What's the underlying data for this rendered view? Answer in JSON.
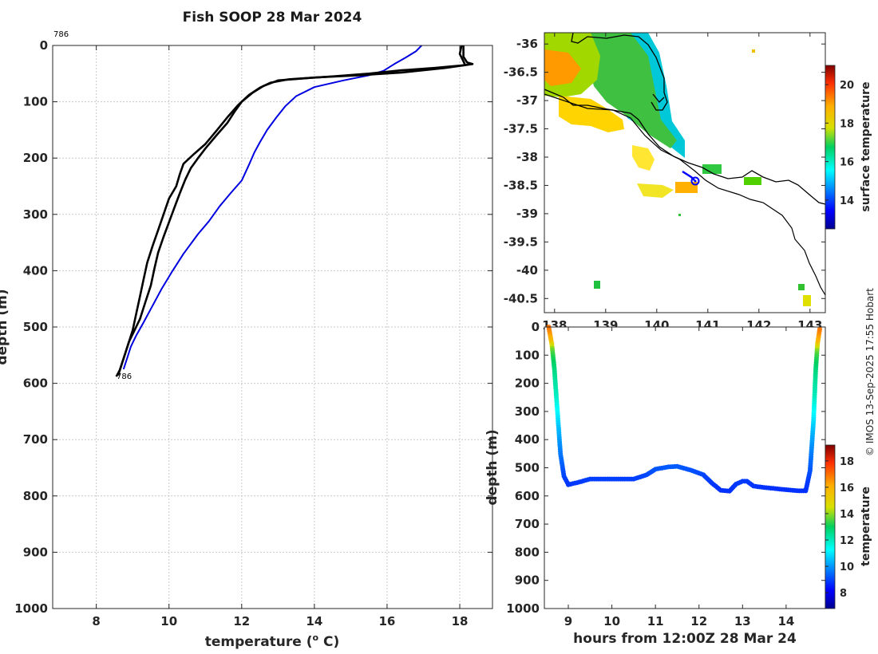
{
  "figure": {
    "title": "Fish SOOP 28 Mar 2024",
    "credit": "© IMOS 13-Sep-2025 17:55 Hobart",
    "profile_id_top": "786",
    "profile_id_bottom": "786"
  },
  "colors": {
    "profile_blue": "#0000e0",
    "profile_black": "#000000",
    "coast": "#000000",
    "ship_track": "#0000ff"
  },
  "chart_data": [
    {
      "type": "line",
      "name": "temperature-depth-profile",
      "xlabel": "temperature (° C)",
      "ylabel": "depth (m)",
      "xlim": [
        6.8,
        18.9
      ],
      "ylim": [
        1000,
        0
      ],
      "xticks": [
        8,
        10,
        12,
        14,
        16,
        18
      ],
      "yticks": [
        0,
        100,
        200,
        300,
        400,
        500,
        600,
        700,
        800,
        900,
        1000
      ],
      "series": [
        {
          "name": "surface profile",
          "color": "#0000e0",
          "points": [
            [
              16.95,
              0
            ],
            [
              16.8,
              10
            ],
            [
              16.5,
              22
            ],
            [
              16.2,
              33
            ],
            [
              15.9,
              45
            ],
            [
              15.5,
              53
            ],
            [
              14.8,
              62
            ],
            [
              14.0,
              74
            ],
            [
              13.5,
              90
            ],
            [
              13.2,
              108
            ],
            [
              12.95,
              128
            ],
            [
              12.7,
              150
            ],
            [
              12.5,
              172
            ],
            [
              12.35,
              190
            ],
            [
              12.2,
              212
            ],
            [
              12.0,
              240
            ],
            [
              11.7,
              262
            ],
            [
              11.4,
              285
            ],
            [
              11.1,
              312
            ],
            [
              10.8,
              335
            ],
            [
              10.4,
              370
            ],
            [
              10.1,
              400
            ],
            [
              9.8,
              432
            ],
            [
              9.55,
              462
            ],
            [
              9.3,
              492
            ],
            [
              9.1,
              515
            ],
            [
              8.95,
              535
            ],
            [
              8.85,
              555
            ],
            [
              8.75,
              575
            ]
          ]
        },
        {
          "name": "deep profile 1",
          "color": "#000000",
          "points": [
            [
              18.05,
              0
            ],
            [
              18.0,
              15
            ],
            [
              18.1,
              28
            ],
            [
              18.15,
              35
            ],
            [
              17.3,
              40
            ],
            [
              16.4,
              44
            ],
            [
              15.5,
              50
            ],
            [
              14.5,
              55
            ],
            [
              13.3,
              60
            ],
            [
              12.8,
              66
            ],
            [
              12.5,
              75
            ],
            [
              12.2,
              88
            ],
            [
              11.9,
              106
            ],
            [
              11.6,
              128
            ],
            [
              11.3,
              152
            ],
            [
              11.0,
              175
            ],
            [
              10.7,
              192
            ],
            [
              10.4,
              210
            ],
            [
              10.3,
              228
            ],
            [
              10.2,
              250
            ],
            [
              10.0,
              272
            ],
            [
              9.85,
              300
            ],
            [
              9.7,
              328
            ],
            [
              9.55,
              356
            ],
            [
              9.4,
              386
            ],
            [
              9.3,
              416
            ],
            [
              9.2,
              446
            ],
            [
              9.1,
              476
            ],
            [
              9.0,
              506
            ],
            [
              8.85,
              536
            ],
            [
              8.75,
              556
            ],
            [
              8.65,
              576
            ],
            [
              8.55,
              588
            ]
          ]
        },
        {
          "name": "deep profile 2",
          "color": "#000000",
          "points": [
            [
              18.1,
              0
            ],
            [
              18.1,
              20
            ],
            [
              18.2,
              30
            ],
            [
              18.35,
              33
            ],
            [
              17.6,
              40
            ],
            [
              16.4,
              48
            ],
            [
              15.2,
              53
            ],
            [
              14.0,
              57
            ],
            [
              13.0,
              62
            ],
            [
              12.6,
              72
            ],
            [
              12.3,
              84
            ],
            [
              12.0,
              100
            ],
            [
              11.8,
              118
            ],
            [
              11.6,
              138
            ],
            [
              11.3,
              160
            ],
            [
              11.0,
              183
            ],
            [
              10.8,
              200
            ],
            [
              10.6,
              218
            ],
            [
              10.45,
              238
            ],
            [
              10.3,
              262
            ],
            [
              10.15,
              288
            ],
            [
              10.0,
              314
            ],
            [
              9.85,
              340
            ],
            [
              9.7,
              368
            ],
            [
              9.6,
              396
            ],
            [
              9.5,
              426
            ],
            [
              9.35,
              456
            ],
            [
              9.2,
              486
            ],
            [
              9.05,
              506
            ],
            [
              8.9,
              526
            ],
            [
              8.8,
              546
            ],
            [
              8.7,
              566
            ],
            [
              8.6,
              586
            ]
          ]
        }
      ]
    },
    {
      "type": "heatmap",
      "name": "sst-map",
      "zlabel": "surface temperature",
      "xlim": [
        137.8,
        143.3
      ],
      "ylim": [
        -40.75,
        -35.8
      ],
      "xticks": [
        138,
        139,
        140,
        141,
        142,
        143
      ],
      "yticks": [
        -36,
        -36.5,
        -37,
        -37.5,
        -38,
        -38.5,
        -39,
        -39.5,
        -40,
        -40.5
      ],
      "zlim": [
        12.5,
        21
      ],
      "zticks": [
        14,
        16,
        18,
        20
      ],
      "ship_track": [
        [
          140.3,
          -38.22
        ],
        [
          140.45,
          -38.3
        ],
        [
          140.55,
          -38.38
        ]
      ]
    },
    {
      "type": "scatter",
      "name": "depth-time-section",
      "xlabel": "hours from 12:00Z 28 Mar 24",
      "ylabel": "depth (m)",
      "xlim": [
        8.45,
        14.9
      ],
      "ylim": [
        1000,
        0
      ],
      "xticks": [
        9,
        10,
        11,
        12,
        13,
        14
      ],
      "yticks": [
        0,
        100,
        200,
        300,
        400,
        500,
        600,
        700,
        800,
        900,
        1000
      ],
      "zlabel": "temperature",
      "zlim": [
        6.8,
        19.2
      ],
      "zticks": [
        8,
        10,
        12,
        14,
        16,
        18
      ],
      "track": [
        [
          8.55,
          0
        ],
        [
          8.62,
          60
        ],
        [
          8.68,
          150
        ],
        [
          8.75,
          300
        ],
        [
          8.82,
          450
        ],
        [
          8.9,
          530
        ],
        [
          9.0,
          560
        ],
        [
          9.2,
          553
        ],
        [
          9.5,
          540
        ],
        [
          10.0,
          540
        ],
        [
          10.5,
          540
        ],
        [
          10.8,
          525
        ],
        [
          11.0,
          505
        ],
        [
          11.3,
          497
        ],
        [
          11.5,
          495
        ],
        [
          11.8,
          508
        ],
        [
          12.1,
          525
        ],
        [
          12.3,
          555
        ],
        [
          12.5,
          580
        ],
        [
          12.7,
          583
        ],
        [
          12.85,
          558
        ],
        [
          13.0,
          548
        ],
        [
          13.1,
          548
        ],
        [
          13.25,
          565
        ],
        [
          13.5,
          570
        ],
        [
          14.0,
          578
        ],
        [
          14.3,
          582
        ],
        [
          14.45,
          582
        ],
        [
          14.55,
          510
        ],
        [
          14.63,
          330
        ],
        [
          14.68,
          150
        ],
        [
          14.72,
          60
        ],
        [
          14.78,
          0
        ]
      ]
    }
  ]
}
